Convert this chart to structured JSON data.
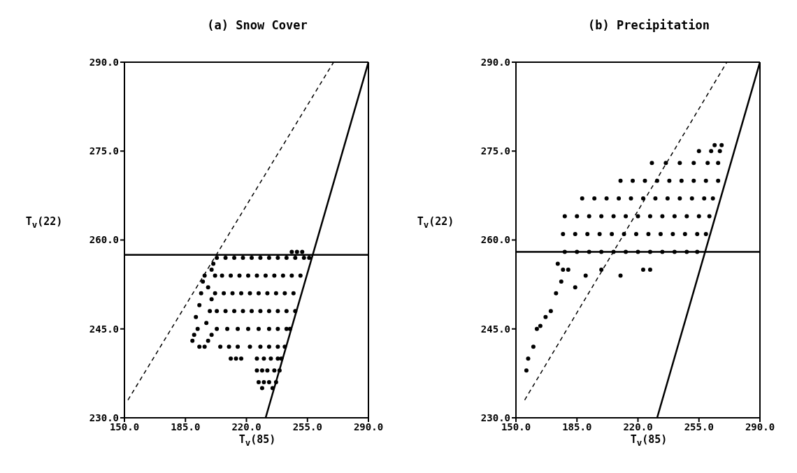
{
  "chart_data": [
    {
      "type": "scatter",
      "title": "(a) Snow Cover",
      "xlabel": "T$_{v}$(85)",
      "ylabel": "T$_{v}$(22)",
      "xlim": [
        150,
        290
      ],
      "xticks": [
        {
          "value": 150,
          "label": "150.0"
        },
        {
          "value": 185,
          "label": "185.0"
        },
        {
          "value": 220,
          "label": "220.0"
        },
        {
          "value": 255,
          "label": "255.0"
        },
        {
          "value": 290,
          "label": "290.0"
        }
      ],
      "ylim": [
        230,
        290
      ],
      "yticks": [
        {
          "value": 230,
          "label": "230.0"
        },
        {
          "value": 245,
          "label": "245.0"
        },
        {
          "value": 260,
          "label": "260.0"
        },
        {
          "value": 275,
          "label": "275.0"
        },
        {
          "value": 290,
          "label": "290.0"
        }
      ],
      "ref_lines": [
        {
          "axis": "y",
          "value": 257.5,
          "color": "#000000"
        }
      ],
      "series": [
        {
          "marker": "circle",
          "color": "#000000",
          "x": [
            189,
            190,
            192,
            191,
            193,
            194,
            195,
            196,
            193,
            196,
            198,
            200,
            197,
            199,
            200,
            198,
            200,
            201,
            203,
            208,
            213,
            218,
            223,
            228,
            233,
            238,
            243,
            248,
            253,
            256,
            246,
            249,
            252,
            202,
            206,
            211,
            216,
            221,
            226,
            231,
            236,
            241,
            246,
            251,
            202,
            207,
            212,
            217,
            222,
            227,
            232,
            237,
            242,
            247,
            203,
            208,
            213,
            218,
            223,
            228,
            233,
            238,
            243,
            248,
            203,
            209,
            215,
            221,
            227,
            233,
            238,
            243,
            245,
            205,
            210,
            215,
            222,
            228,
            233,
            238,
            242,
            211,
            214,
            217,
            226,
            230,
            234,
            238,
            240,
            226,
            229,
            232,
            236,
            239,
            227,
            230,
            233,
            237,
            229,
            235
          ],
          "values": [
            243,
            244,
            245,
            247,
            249,
            251,
            253,
            254,
            242,
            242,
            243,
            244,
            246,
            248,
            250,
            252,
            255,
            256,
            257,
            257,
            257,
            257,
            257,
            257,
            257,
            257,
            257,
            257,
            257,
            257,
            258,
            258,
            258,
            254,
            254,
            254,
            254,
            254,
            254,
            254,
            254,
            254,
            254,
            254,
            251,
            251,
            251,
            251,
            251,
            251,
            251,
            251,
            251,
            251,
            248,
            248,
            248,
            248,
            248,
            248,
            248,
            248,
            248,
            248,
            245,
            245,
            245,
            245,
            245,
            245,
            245,
            245,
            245,
            242,
            242,
            242,
            242,
            242,
            242,
            242,
            242,
            240,
            240,
            240,
            240,
            240,
            240,
            240,
            240,
            238,
            238,
            238,
            238,
            238,
            236,
            236,
            236,
            236,
            235,
            235
          ]
        },
        {
          "type": "line",
          "color": "#000000",
          "line_style": "solid",
          "x": [
            231,
            290
          ],
          "values": [
            230,
            290
          ]
        },
        {
          "type": "line",
          "color": "#000000",
          "line_style": "dashed",
          "x": [
            152,
            270
          ],
          "values": [
            233,
            290
          ]
        }
      ]
    },
    {
      "type": "scatter",
      "title": "(b) Precipitation",
      "xlabel": "T$_{v}$(85)",
      "ylabel": "T$_{v}$(22)",
      "xlim": [
        150,
        290
      ],
      "xticks": [
        {
          "value": 150,
          "label": "150.0"
        },
        {
          "value": 185,
          "label": "185.0"
        },
        {
          "value": 220,
          "label": "220.0"
        },
        {
          "value": 255,
          "label": "255.0"
        },
        {
          "value": 290,
          "label": "290.0"
        }
      ],
      "ylim": [
        230,
        290
      ],
      "yticks": [
        {
          "value": 230,
          "label": "230.0"
        },
        {
          "value": 245,
          "label": "245.0"
        },
        {
          "value": 260,
          "label": "260.0"
        },
        {
          "value": 275,
          "label": "275.0"
        },
        {
          "value": 290,
          "label": "290.0"
        }
      ],
      "ref_lines": [
        {
          "axis": "y",
          "value": 258,
          "color": "#000000"
        }
      ],
      "series": [
        {
          "marker": "circle",
          "color": "#000000",
          "x": [
            156,
            157,
            160,
            162,
            164,
            167,
            170,
            173,
            176,
            177,
            174,
            180,
            184,
            190,
            199,
            210,
            223,
            227,
            178,
            185,
            192,
            199,
            206,
            213,
            220,
            227,
            234,
            241,
            248,
            254,
            177,
            184,
            191,
            198,
            205,
            212,
            219,
            226,
            233,
            240,
            247,
            254,
            259,
            178,
            185,
            192,
            199,
            206,
            213,
            220,
            227,
            234,
            241,
            248,
            255,
            261,
            188,
            195,
            202,
            209,
            216,
            223,
            230,
            237,
            244,
            251,
            258,
            263,
            210,
            217,
            224,
            231,
            238,
            245,
            252,
            259,
            266,
            228,
            236,
            244,
            252,
            260,
            266,
            255,
            262,
            267,
            264,
            268
          ],
          "values": [
            238,
            240,
            242,
            245,
            245.5,
            247,
            248,
            251,
            253,
            255,
            256,
            255,
            252,
            254,
            255,
            254,
            255,
            255,
            258,
            258,
            258,
            258,
            258,
            258,
            258,
            258,
            258,
            258,
            258,
            258,
            261,
            261,
            261,
            261,
            261,
            261,
            261,
            261,
            261,
            261,
            261,
            261,
            261,
            264,
            264,
            264,
            264,
            264,
            264,
            264,
            264,
            264,
            264,
            264,
            264,
            264,
            267,
            267,
            267,
            267,
            267,
            267,
            267,
            267,
            267,
            267,
            267,
            267,
            270,
            270,
            270,
            270,
            270,
            270,
            270,
            270,
            270,
            273,
            273,
            273,
            273,
            273,
            273,
            275,
            275,
            275,
            276,
            276
          ]
        },
        {
          "type": "line",
          "color": "#000000",
          "line_style": "solid",
          "x": [
            231,
            290
          ],
          "values": [
            230,
            290
          ]
        },
        {
          "type": "line",
          "color": "#000000",
          "line_style": "dashed",
          "x": [
            155,
            271
          ],
          "values": [
            233,
            290
          ]
        }
      ]
    }
  ]
}
